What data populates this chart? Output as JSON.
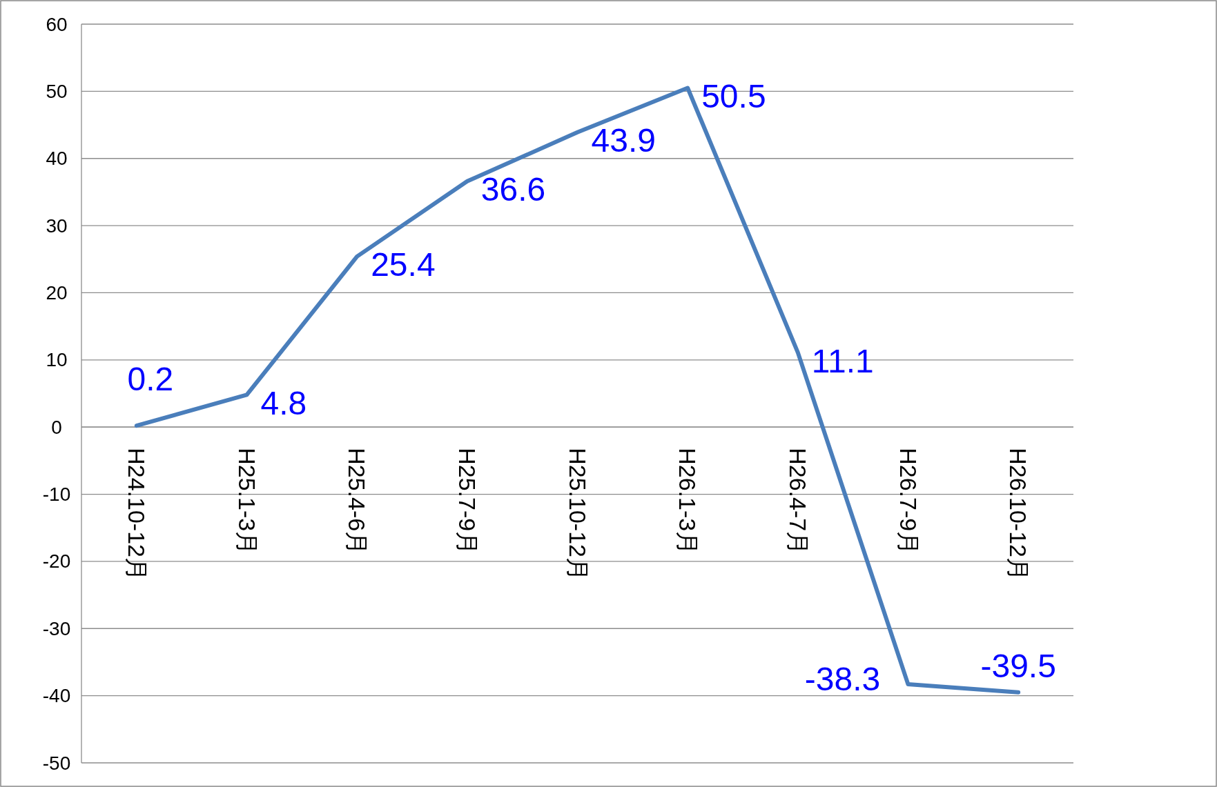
{
  "chart_data": {
    "type": "line",
    "categories": [
      "H24.10-12月",
      "H25.1-3月",
      "H25.4-6月",
      "H25.7-9月",
      "H25.10-12月",
      "H26.1-3月",
      "H26.4-7月",
      "H26.7-9月",
      "H26.10-12月"
    ],
    "series": [
      {
        "color": "#4a7ebb",
        "values": [
          0.2,
          4.8,
          25.4,
          36.6,
          43.9,
          50.5,
          11.1,
          -38.3,
          -39.5
        ]
      }
    ],
    "ylim": [
      -50,
      60
    ],
    "yticks": [
      -50,
      -40,
      -30,
      -20,
      -10,
      0,
      10,
      20,
      30,
      40,
      50,
      60
    ],
    "grid": "y",
    "marker": "none",
    "line_style": "solid",
    "data_labels": true
  }
}
